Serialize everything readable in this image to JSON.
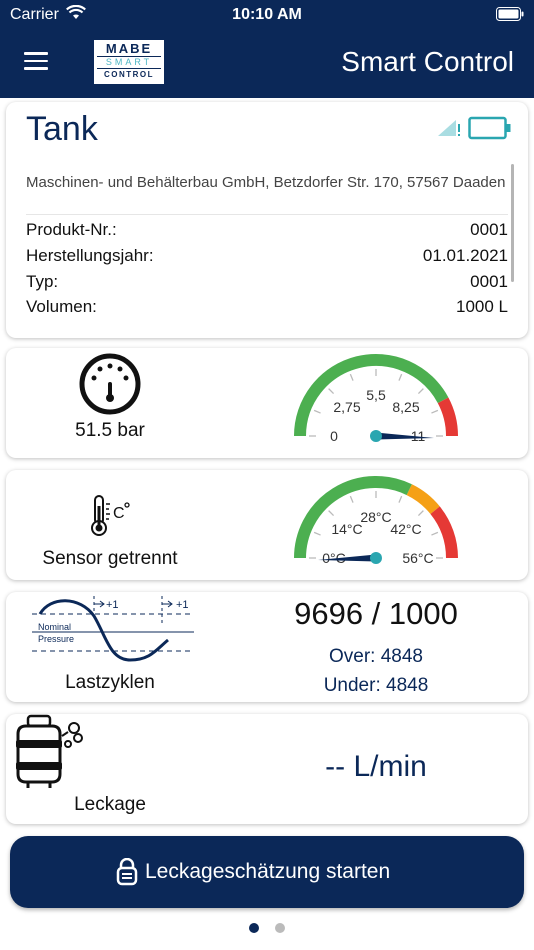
{
  "status_bar": {
    "carrier": "Carrier",
    "time": "10:10 AM"
  },
  "header": {
    "logo_line1": "MABE",
    "logo_line2": "SMART",
    "logo_line3": "CONTROL",
    "title": "Smart Control"
  },
  "tank": {
    "title": "Tank",
    "address": "Maschinen- und Behälterbau GmbH, Betzdorfer Str. 170, 57567 Daaden",
    "rows": [
      {
        "label": "Produkt-Nr.:",
        "value": "0001"
      },
      {
        "label": "Herstellungsjahr:",
        "value": "01.01.2021"
      },
      {
        "label": "Typ:",
        "value": "0001"
      },
      {
        "label": "Volumen:",
        "value": "1000 L"
      }
    ]
  },
  "pressure": {
    "label": "51.5 bar",
    "gauge_ticks": [
      "0",
      "2,75",
      "5,5",
      "8,25",
      "11"
    ],
    "gauge_min": 0,
    "gauge_max": 11
  },
  "temperature": {
    "label": "Sensor getrennt",
    "gauge_ticks": [
      "0°C",
      "14°C",
      "28°C",
      "42°C",
      "56°C"
    ],
    "gauge_min": 0,
    "gauge_max": 56
  },
  "load_cycles": {
    "label": "Lastzyklen",
    "diagram_nominal": "Nominal",
    "diagram_pressure": "Pressure",
    "diagram_plus": "+1",
    "count": "9696 / 1000",
    "over": "Over: 4848",
    "under": "Under: 4848"
  },
  "leakage": {
    "label": "Leckage",
    "flow": "-- L/min"
  },
  "action": {
    "button_label": "Leckageschätzung starten"
  },
  "pager": {
    "current_page": 1,
    "page_count": 2
  },
  "colors": {
    "brand_navy": "#0b2858",
    "accent_teal": "#2aa6b0",
    "gauge_green": "#4caf50",
    "gauge_orange": "#f5a016",
    "gauge_red": "#e53935"
  }
}
